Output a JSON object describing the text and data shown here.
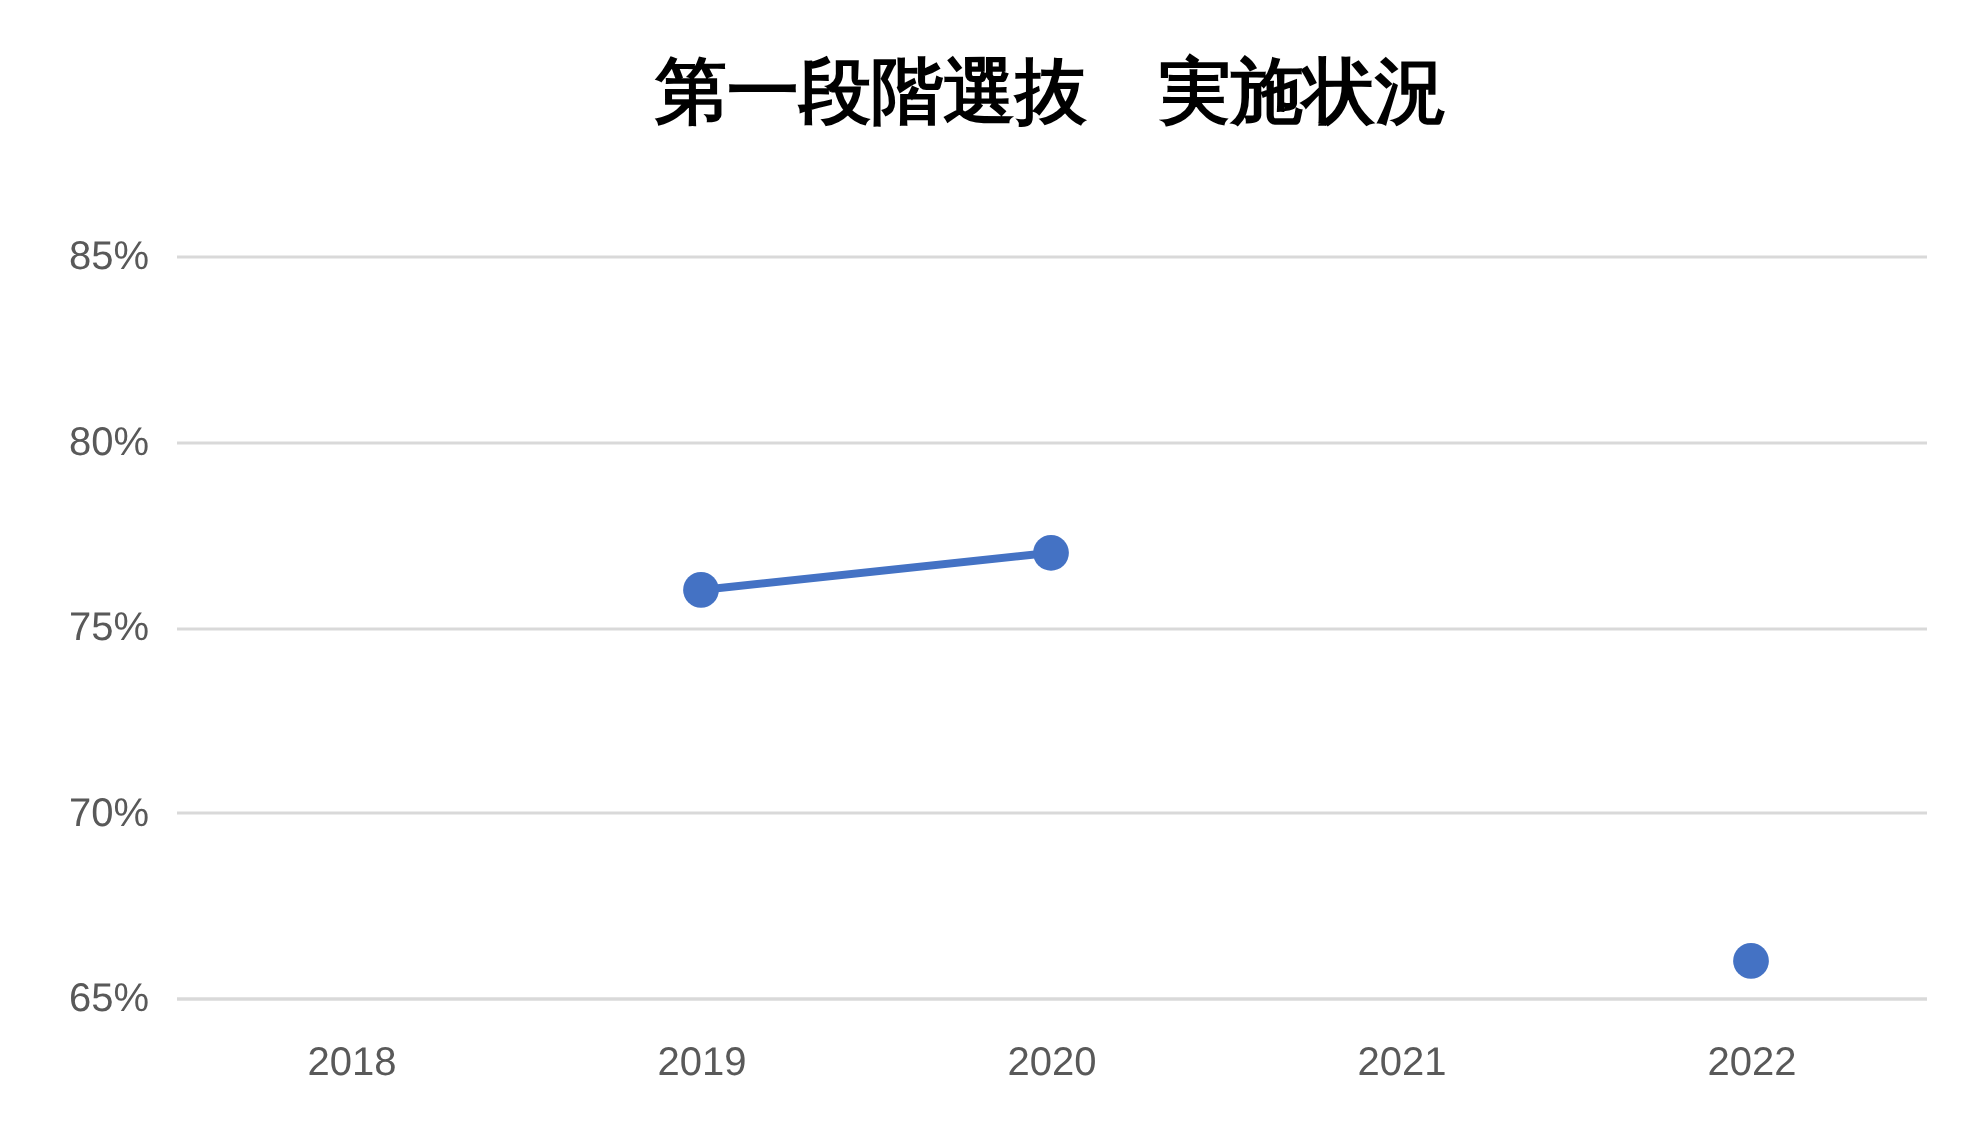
{
  "chart_data": {
    "type": "line",
    "title": "第一段階選抜　実施状況",
    "categories": [
      "2018",
      "2019",
      "2020",
      "2021",
      "2022"
    ],
    "series": [
      {
        "color": "#4472c4",
        "values": [
          null,
          76,
          77,
          null,
          66
        ]
      }
    ],
    "ylim": [
      65,
      85
    ],
    "yticks": [
      {
        "value": 65,
        "label": "65%"
      },
      {
        "value": 70,
        "label": "70%"
      },
      {
        "value": 75,
        "label": "75%"
      },
      {
        "value": 80,
        "label": "80%"
      },
      {
        "value": 85,
        "label": "85%"
      }
    ],
    "grid": "y",
    "marker": "circle",
    "legend": false
  }
}
